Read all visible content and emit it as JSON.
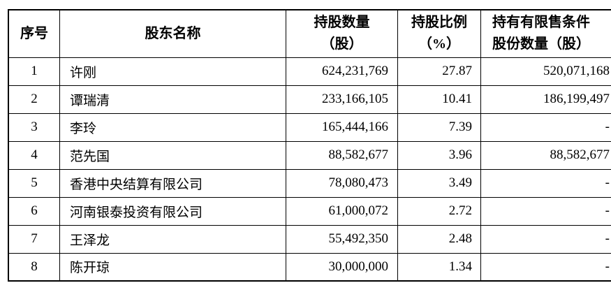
{
  "page": {
    "background_color": "#ffffff",
    "text_color": "#000000",
    "border_color": "#000000"
  },
  "table": {
    "columns": [
      {
        "key": "index",
        "label": "序号"
      },
      {
        "key": "name",
        "label": "股东名称"
      },
      {
        "key": "shares",
        "label": "持股数量\n（股）"
      },
      {
        "key": "ratio",
        "label": "持股比例\n（%）"
      },
      {
        "key": "restricted",
        "label": "持有有限售条件\n股份数量（股）"
      }
    ],
    "rows": [
      {
        "index": "1",
        "name": "许刚",
        "shares": "624,231,769",
        "ratio": "27.87",
        "restricted": "520,071,168"
      },
      {
        "index": "2",
        "name": "谭瑞清",
        "shares": "233,166,105",
        "ratio": "10.41",
        "restricted": "186,199,497"
      },
      {
        "index": "3",
        "name": "李玲",
        "shares": "165,444,166",
        "ratio": "7.39",
        "restricted": "-"
      },
      {
        "index": "4",
        "name": "范先国",
        "shares": "88,582,677",
        "ratio": "3.96",
        "restricted": "88,582,677"
      },
      {
        "index": "5",
        "name": "香港中央结算有限公司",
        "shares": "78,080,473",
        "ratio": "3.49",
        "restricted": "-"
      },
      {
        "index": "6",
        "name": "河南银泰投资有限公司",
        "shares": "61,000,072",
        "ratio": "2.72",
        "restricted": "-"
      },
      {
        "index": "7",
        "name": "王泽龙",
        "shares": "55,492,350",
        "ratio": "2.48",
        "restricted": "-"
      },
      {
        "index": "8",
        "name": "陈开琼",
        "shares": "30,000,000",
        "ratio": "1.34",
        "restricted": "-"
      }
    ]
  }
}
